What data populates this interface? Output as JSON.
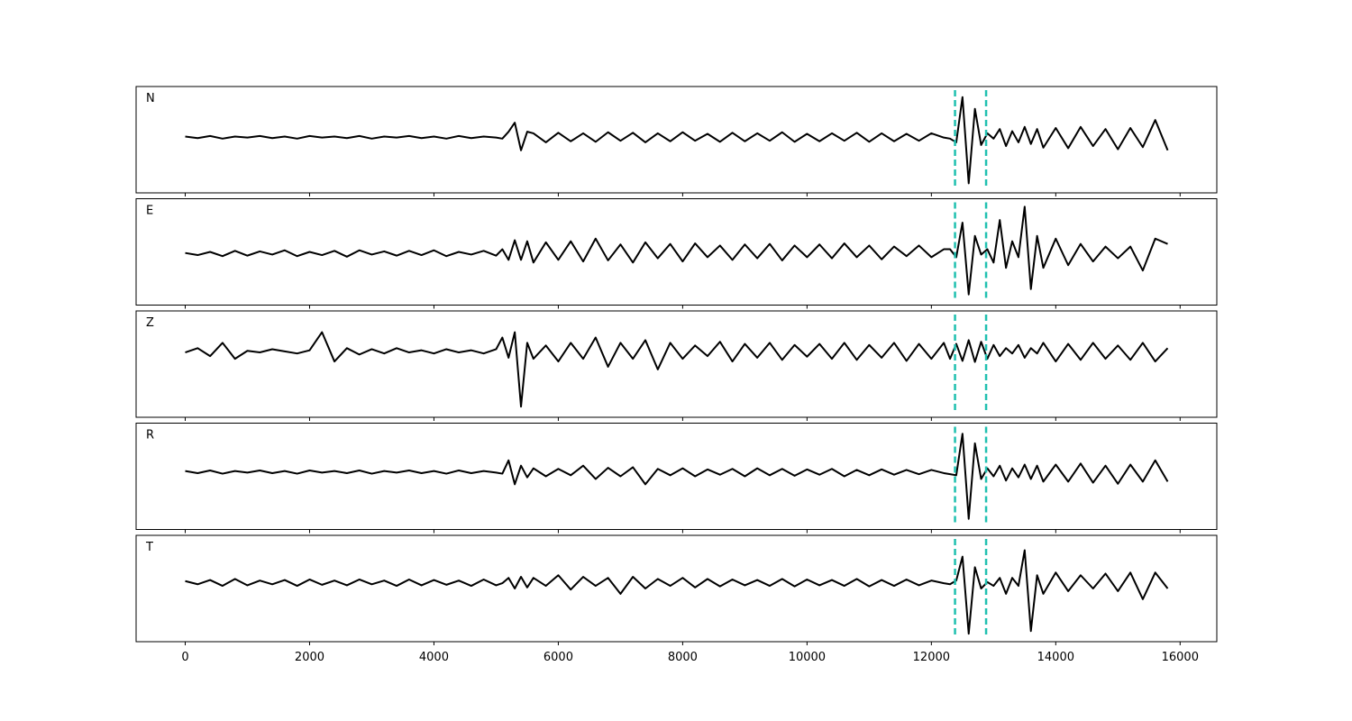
{
  "chart_data": {
    "type": "line",
    "ylim": [
      -1,
      1
    ],
    "xlim": [
      -790,
      16590
    ],
    "xticks": [
      0,
      2000,
      4000,
      6000,
      8000,
      10000,
      12000,
      14000,
      16000
    ],
    "markers": [
      12380,
      12880
    ],
    "marker_color": "#20c0b0",
    "x": [
      0,
      200,
      400,
      600,
      800,
      1000,
      1200,
      1400,
      1600,
      1800,
      2000,
      2200,
      2400,
      2600,
      2800,
      3000,
      3200,
      3400,
      3600,
      3800,
      4000,
      4200,
      4400,
      4600,
      4800,
      5000,
      5100,
      5200,
      5300,
      5400,
      5500,
      5600,
      5800,
      6000,
      6200,
      6400,
      6600,
      6800,
      7000,
      7200,
      7400,
      7600,
      7800,
      8000,
      8200,
      8400,
      8600,
      8800,
      9000,
      9200,
      9400,
      9600,
      9800,
      10000,
      10200,
      10400,
      10600,
      10800,
      11000,
      11200,
      11400,
      11600,
      11800,
      12000,
      12200,
      12300,
      12400,
      12500,
      12600,
      12700,
      12800,
      12900,
      13000,
      13100,
      13200,
      13300,
      13400,
      13500,
      13600,
      13700,
      13800,
      14000,
      14200,
      14400,
      14600,
      14800,
      15000,
      15200,
      15400,
      15600,
      15800
    ],
    "series": [
      {
        "name": "N",
        "color": "#000000",
        "values": [
          0.06,
          0.03,
          0.07,
          0.02,
          0.06,
          0.04,
          0.07,
          0.03,
          0.06,
          0.02,
          0.07,
          0.04,
          0.06,
          0.03,
          0.07,
          0.02,
          0.06,
          0.04,
          0.07,
          0.03,
          0.06,
          0.02,
          0.07,
          0.03,
          0.06,
          0.04,
          0.02,
          0.15,
          0.32,
          -0.2,
          0.15,
          0.12,
          -0.05,
          0.13,
          -0.03,
          0.12,
          -0.04,
          0.14,
          -0.02,
          0.13,
          -0.05,
          0.12,
          -0.03,
          0.14,
          -0.02,
          0.11,
          -0.04,
          0.13,
          -0.03,
          0.12,
          -0.02,
          0.14,
          -0.04,
          0.11,
          -0.03,
          0.12,
          -0.02,
          0.13,
          -0.04,
          0.12,
          -0.03,
          0.11,
          -0.02,
          0.12,
          0.04,
          0.02,
          -0.05,
          0.8,
          -0.82,
          0.58,
          -0.1,
          0.12,
          0.02,
          0.2,
          -0.12,
          0.16,
          -0.05,
          0.24,
          -0.08,
          0.2,
          -0.15,
          0.22,
          -0.16,
          0.24,
          -0.12,
          0.2,
          -0.18,
          0.22,
          -0.14,
          0.37,
          -0.2
        ]
      },
      {
        "name": "E",
        "color": "#000000",
        "values": [
          -0.02,
          -0.06,
          0.0,
          -0.08,
          0.02,
          -0.07,
          0.01,
          -0.05,
          0.03,
          -0.08,
          0.0,
          -0.06,
          0.02,
          -0.09,
          0.03,
          -0.05,
          0.01,
          -0.07,
          0.02,
          -0.06,
          0.03,
          -0.08,
          0.0,
          -0.05,
          0.02,
          -0.07,
          0.05,
          -0.15,
          0.22,
          -0.15,
          0.2,
          -0.2,
          0.18,
          -0.15,
          0.2,
          -0.18,
          0.25,
          -0.16,
          0.14,
          -0.2,
          0.18,
          -0.12,
          0.15,
          -0.18,
          0.16,
          -0.1,
          0.12,
          -0.15,
          0.14,
          -0.12,
          0.15,
          -0.16,
          0.12,
          -0.1,
          0.14,
          -0.12,
          0.16,
          -0.1,
          0.12,
          -0.14,
          0.1,
          -0.08,
          0.12,
          -0.1,
          0.05,
          0.05,
          -0.1,
          0.55,
          -0.8,
          0.3,
          -0.05,
          0.05,
          -0.2,
          0.6,
          -0.3,
          0.2,
          -0.1,
          0.85,
          -0.7,
          0.3,
          -0.3,
          0.25,
          -0.25,
          0.15,
          -0.18,
          0.1,
          -0.12,
          0.1,
          -0.35,
          0.25,
          0.15
        ]
      },
      {
        "name": "Z",
        "color": "#000000",
        "values": [
          0.22,
          0.3,
          0.15,
          0.4,
          0.1,
          0.25,
          0.22,
          0.28,
          0.24,
          0.2,
          0.26,
          0.6,
          0.05,
          0.3,
          0.18,
          0.28,
          0.2,
          0.3,
          0.22,
          0.26,
          0.2,
          0.28,
          0.22,
          0.26,
          0.2,
          0.28,
          0.5,
          0.12,
          0.6,
          -0.8,
          0.4,
          0.1,
          0.35,
          0.05,
          0.4,
          0.1,
          0.5,
          -0.05,
          0.4,
          0.1,
          0.45,
          -0.1,
          0.4,
          0.1,
          0.35,
          0.15,
          0.42,
          0.05,
          0.38,
          0.12,
          0.4,
          0.08,
          0.36,
          0.14,
          0.38,
          0.1,
          0.4,
          0.08,
          0.36,
          0.12,
          0.4,
          0.06,
          0.38,
          0.1,
          0.4,
          0.1,
          0.38,
          0.06,
          0.45,
          0.04,
          0.42,
          0.1,
          0.36,
          0.15,
          0.3,
          0.2,
          0.36,
          0.12,
          0.3,
          0.2,
          0.4,
          0.05,
          0.38,
          0.08,
          0.4,
          0.1,
          0.35,
          0.08,
          0.4,
          0.05,
          0.3
        ]
      },
      {
        "name": "R",
        "color": "#000000",
        "values": [
          0.1,
          0.06,
          0.11,
          0.05,
          0.1,
          0.07,
          0.11,
          0.06,
          0.1,
          0.05,
          0.11,
          0.07,
          0.1,
          0.06,
          0.11,
          0.05,
          0.1,
          0.07,
          0.11,
          0.06,
          0.1,
          0.05,
          0.11,
          0.06,
          0.1,
          0.07,
          0.05,
          0.3,
          -0.15,
          0.2,
          -0.02,
          0.15,
          0.0,
          0.14,
          0.02,
          0.2,
          -0.05,
          0.16,
          0.0,
          0.17,
          -0.15,
          0.14,
          0.02,
          0.15,
          0.0,
          0.13,
          0.03,
          0.14,
          0.0,
          0.15,
          0.02,
          0.14,
          0.01,
          0.13,
          0.03,
          0.14,
          0.0,
          0.12,
          0.02,
          0.13,
          0.03,
          0.12,
          0.04,
          0.12,
          0.06,
          0.04,
          0.02,
          0.8,
          -0.8,
          0.62,
          -0.05,
          0.15,
          0.0,
          0.2,
          -0.08,
          0.15,
          -0.02,
          0.22,
          -0.05,
          0.2,
          -0.1,
          0.22,
          -0.1,
          0.24,
          -0.12,
          0.2,
          -0.14,
          0.22,
          -0.1,
          0.3,
          -0.1
        ]
      },
      {
        "name": "T",
        "color": "#000000",
        "values": [
          0.14,
          0.08,
          0.16,
          0.05,
          0.18,
          0.06,
          0.15,
          0.08,
          0.16,
          0.05,
          0.17,
          0.07,
          0.15,
          0.06,
          0.17,
          0.08,
          0.15,
          0.05,
          0.17,
          0.06,
          0.16,
          0.07,
          0.15,
          0.05,
          0.17,
          0.06,
          0.1,
          0.2,
          0.0,
          0.22,
          0.02,
          0.2,
          0.05,
          0.25,
          -0.02,
          0.22,
          0.05,
          0.2,
          -0.1,
          0.22,
          0.0,
          0.18,
          0.05,
          0.2,
          0.02,
          0.18,
          0.04,
          0.17,
          0.06,
          0.16,
          0.05,
          0.18,
          0.04,
          0.17,
          0.06,
          0.16,
          0.05,
          0.18,
          0.04,
          0.16,
          0.05,
          0.17,
          0.06,
          0.15,
          0.1,
          0.08,
          0.15,
          0.6,
          -0.85,
          0.4,
          0.0,
          0.12,
          0.05,
          0.2,
          -0.1,
          0.2,
          0.05,
          0.72,
          -0.8,
          0.25,
          -0.1,
          0.3,
          -0.05,
          0.25,
          0.0,
          0.28,
          -0.05,
          0.3,
          -0.2,
          0.3,
          0.0
        ]
      }
    ]
  }
}
